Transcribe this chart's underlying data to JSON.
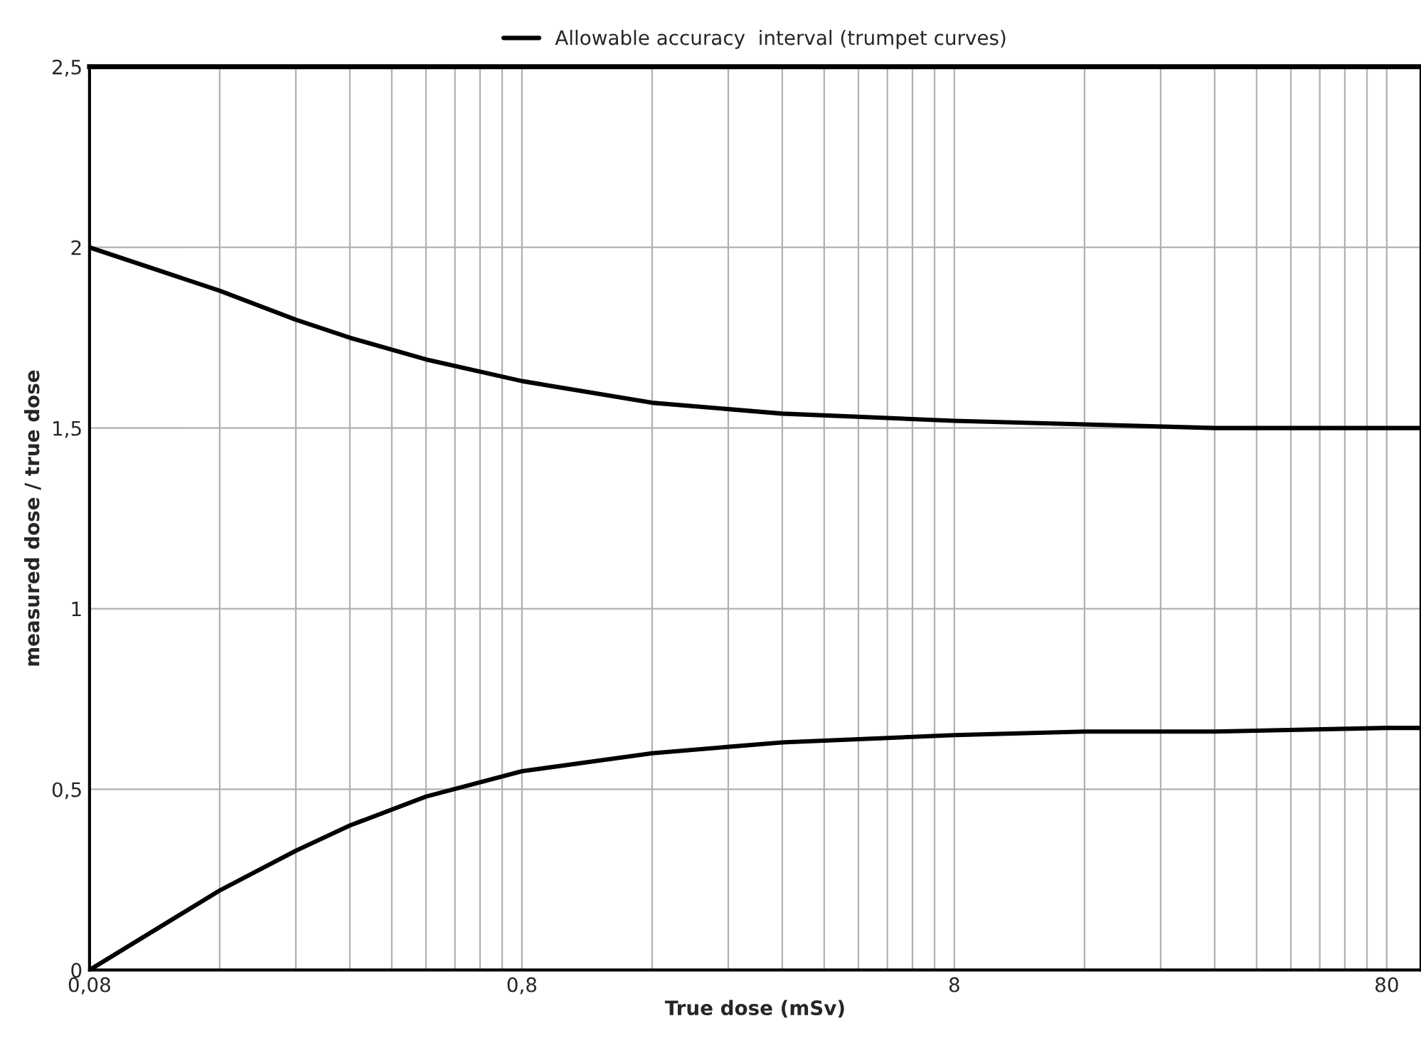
{
  "chart_data": {
    "type": "line",
    "xlabel": "True dose (mSv)",
    "ylabel": "measured dose / true dose",
    "log": "x",
    "grid": true,
    "legend": "top",
    "marker": "none",
    "line_style": "solid",
    "x": [
      0.08,
      0.16,
      0.24,
      0.32,
      0.48,
      0.8,
      1.6,
      3.2,
      8,
      16,
      32,
      80,
      96
    ],
    "series": [
      {
        "name": "Allowable accuracy  interval (trumpet curves)",
        "color": "#000000",
        "values": [
          2.0,
          1.88,
          1.8,
          1.75,
          1.69,
          1.63,
          1.57,
          1.54,
          1.52,
          1.51,
          1.5,
          1.5,
          1.5
        ]
      },
      {
        "color": "#000000",
        "values": [
          0.0,
          0.22,
          0.33,
          0.4,
          0.48,
          0.55,
          0.6,
          0.63,
          0.65,
          0.66,
          0.66,
          0.67,
          0.67
        ]
      }
    ],
    "xlim": [
      0.08,
      96
    ],
    "xticks": [
      {
        "value": 0.08,
        "label": "0,08"
      },
      {
        "value": 0.8,
        "label": "0,8"
      },
      {
        "value": 8,
        "label": "8"
      },
      {
        "value": 80,
        "label": "80"
      }
    ],
    "ylim": [
      0,
      2.5
    ],
    "yticks": [
      0,
      {
        "value": 0.5,
        "label": "0,5"
      },
      1,
      {
        "value": 1.5,
        "label": "1,5"
      },
      2,
      {
        "value": 2.5,
        "label": "2,5"
      }
    ]
  }
}
